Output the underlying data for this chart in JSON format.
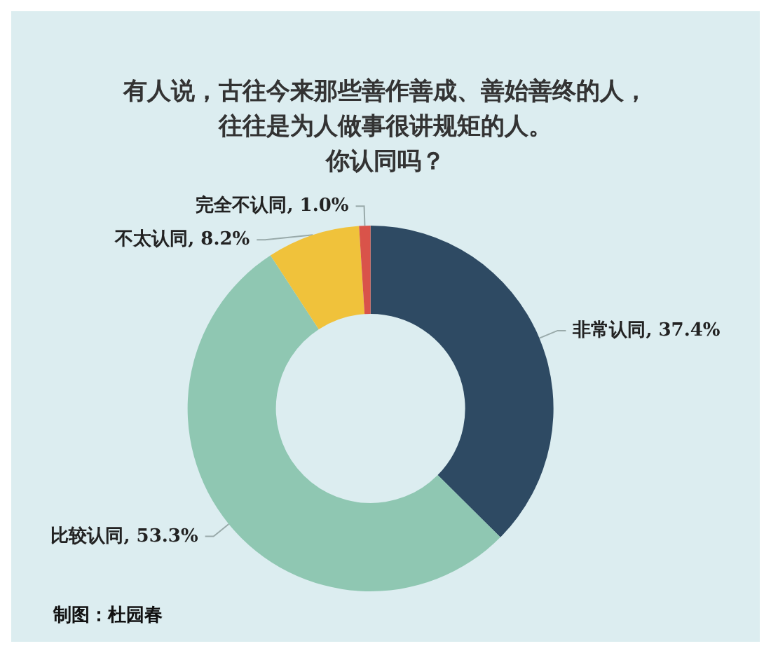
{
  "chart_data": {
    "type": "donut",
    "title": "有人说，古往今来那些善作善成、善始善终的人，往往是为人做事很讲规矩的人。",
    "subtitle": "你认同吗？",
    "categories": [
      "非常认同",
      "比较认同",
      "不太认同",
      "完全不认同"
    ],
    "values": [
      37.4,
      53.3,
      8.2,
      1.0
    ],
    "colors": [
      "#2e4a63",
      "#8fc7b2",
      "#f0c23b",
      "#d9534a"
    ],
    "value_labels": [
      "37.4%",
      "53.3%",
      "8.2%",
      "1.0%"
    ],
    "annotations": [
      "制图：杜园春"
    ],
    "legend": false
  }
}
